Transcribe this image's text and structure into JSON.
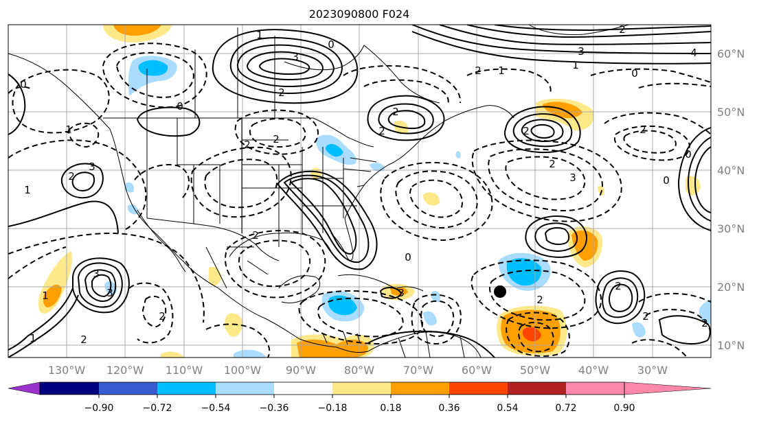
{
  "title": "2023090800 F024",
  "map": {
    "lon_range": [
      "140°W",
      "20°W"
    ],
    "lat_range": [
      "8°N",
      "65°N"
    ],
    "lon_ticks": [
      "130°W",
      "120°W",
      "110°W",
      "100°W",
      "90°W",
      "80°W",
      "70°W",
      "60°W",
      "50°W",
      "40°W",
      "30°W"
    ],
    "lat_ticks": [
      "60°N",
      "50°N",
      "40°N",
      "30°N",
      "20°N",
      "10°N"
    ],
    "gridlines": true,
    "features": [
      "coastlines",
      "country-borders",
      "us-state-borders"
    ],
    "contour_labels": [
      "3",
      "1",
      "0",
      "0",
      "0",
      "2",
      "3",
      "2",
      "1",
      "1",
      "2",
      "2",
      "3",
      "4",
      "0",
      "2",
      "2",
      "2",
      "3",
      "2",
      "2",
      "1",
      "1",
      "0",
      "1",
      "3",
      "3",
      "3",
      "2",
      "2",
      "2",
      "2",
      "2",
      "0",
      "2",
      "2",
      "2",
      "0",
      "1",
      "2"
    ],
    "contour_style": {
      "positive": "solid",
      "negative": "dashed",
      "color": "#000000"
    },
    "marker": "black-dot"
  },
  "colorbar": {
    "ticks": [
      "−0.90",
      "−0.72",
      "−0.54",
      "−0.36",
      "−0.18",
      "0.18",
      "0.36",
      "0.54",
      "0.72",
      "0.90"
    ],
    "colors": [
      "#9933cc",
      "#000080",
      "#3a5bd0",
      "#00bfff",
      "#aadcff",
      "#ffffff",
      "#ffe88a",
      "#ffa000",
      "#ff4500",
      "#b22222",
      "#ff88aa"
    ],
    "extend": "both"
  },
  "fill_colors": {
    "pos_low": "#ffe88a",
    "pos_mid": "#ffa000",
    "pos_high": "#ff4500",
    "neg_low": "#aadcff",
    "neg_mid": "#00bfff"
  }
}
